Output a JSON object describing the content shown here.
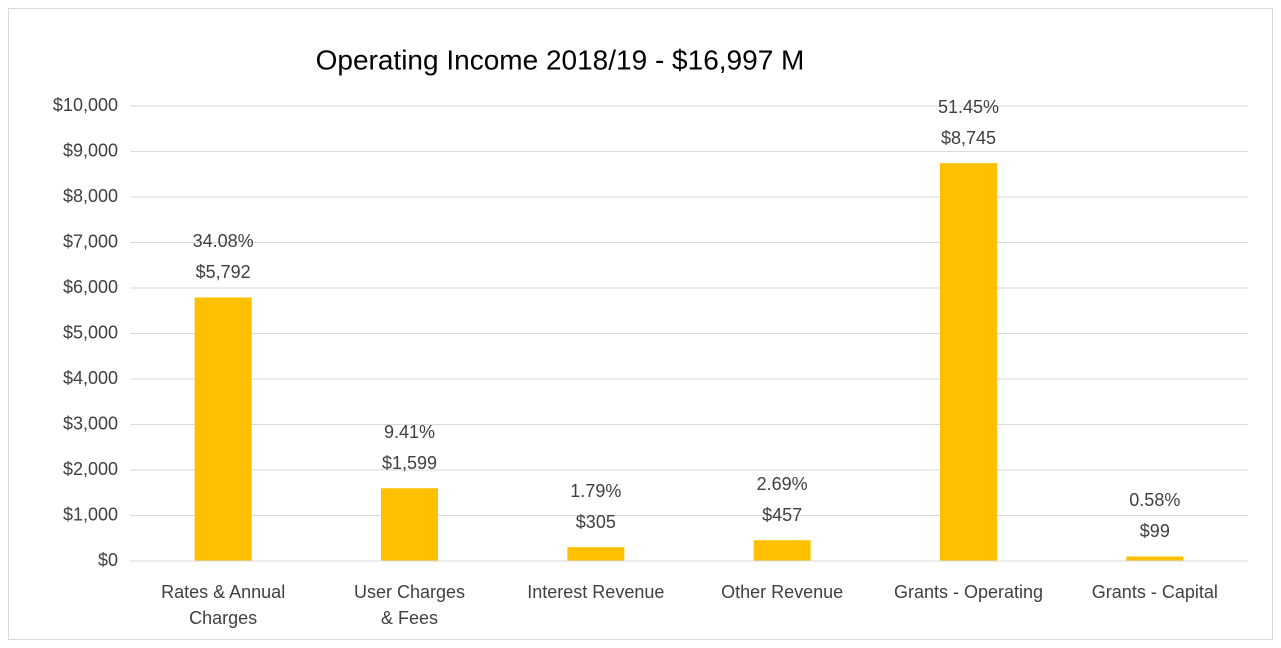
{
  "chart_data": {
    "type": "bar",
    "title": "Operating Income  2018/19 - $16,997 M",
    "categories": [
      "Rates & Annual Charges",
      "User Charges & Fees",
      "Interest Revenue",
      "Other Revenue",
      "Grants - Operating",
      "Grants - Capital"
    ],
    "values": [
      5792,
      1599,
      305,
      457,
      8745,
      99
    ],
    "value_labels": [
      "$5,792",
      "$1,599",
      "$305",
      "$457",
      "$8,745",
      "$99"
    ],
    "percent_labels": [
      "34.08%",
      "9.41%",
      "1.79%",
      "2.69%",
      "51.45%",
      "0.58%"
    ],
    "color": "#ffc000",
    "ylim": [
      0,
      10000
    ],
    "yticks": [
      {
        "value": 0,
        "label": "$0"
      },
      {
        "value": 1000,
        "label": "$1,000"
      },
      {
        "value": 2000,
        "label": "$2,000"
      },
      {
        "value": 3000,
        "label": "$3,000"
      },
      {
        "value": 4000,
        "label": "$4,000"
      },
      {
        "value": 5000,
        "label": "$5,000"
      },
      {
        "value": 6000,
        "label": "$6,000"
      },
      {
        "value": 7000,
        "label": "$7,000"
      },
      {
        "value": 8000,
        "label": "$8,000"
      },
      {
        "value": 9000,
        "label": "$9,000"
      },
      {
        "value": 10000,
        "label": "$10,000"
      }
    ],
    "grid": true
  }
}
